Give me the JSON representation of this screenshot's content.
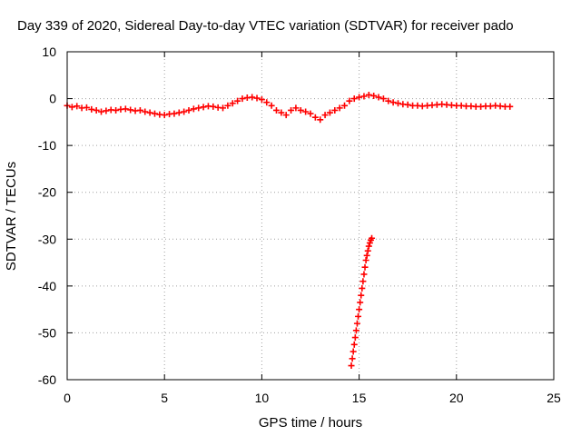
{
  "chart_data": {
    "type": "scatter",
    "title": "Day 339 of 2020, Sidereal Day-to-day VTEC variation (SDTVAR) for receiver pado",
    "xlabel": "GPS time / hours",
    "ylabel": "SDTVAR / TECUs",
    "xlim": [
      0,
      25
    ],
    "ylim": [
      -60,
      10
    ],
    "xticks": [
      "0",
      "5",
      "10",
      "15",
      "20",
      "25"
    ],
    "xtick_values": [
      0,
      5,
      10,
      15,
      20,
      25
    ],
    "yticks": [
      "10",
      "0",
      "-10",
      "-20",
      "-30",
      "-40",
      "-50",
      "-60"
    ],
    "ytick_values": [
      10,
      0,
      -10,
      -20,
      -30,
      -40,
      -50,
      -60
    ],
    "grid": true,
    "marker": "plus",
    "color": "#ff0000",
    "series": [
      {
        "x": [
          0.0,
          0.25,
          0.5,
          0.75,
          1.0,
          1.25,
          1.5,
          1.75,
          2.0,
          2.25,
          2.5,
          2.75,
          3.0,
          3.25,
          3.5,
          3.75,
          4.0,
          4.25,
          4.5,
          4.75,
          5.0,
          5.25,
          5.5,
          5.75,
          6.0,
          6.25,
          6.5,
          6.75
        ],
        "y": [
          -1.5,
          -1.8,
          -1.6,
          -2.0,
          -1.9,
          -2.3,
          -2.5,
          -2.8,
          -2.6,
          -2.4,
          -2.5,
          -2.3,
          -2.2,
          -2.4,
          -2.6,
          -2.5,
          -2.8,
          -3.0,
          -3.2,
          -3.4,
          -3.5,
          -3.3,
          -3.2,
          -3.0,
          -2.8,
          -2.5,
          -2.2,
          -2.0
        ]
      },
      {
        "x": [
          7.0,
          7.25,
          7.5,
          7.75,
          8.0,
          8.25,
          8.5,
          8.75,
          9.0,
          9.25,
          9.5,
          9.75,
          10.0,
          10.25,
          10.5,
          10.75,
          11.0,
          11.25,
          11.5,
          11.75,
          12.0,
          12.25,
          12.5,
          12.75,
          13.0,
          13.25,
          13.5,
          13.75,
          14.0,
          14.25,
          14.5,
          14.75,
          15.0,
          15.25,
          15.5,
          15.75,
          16.0,
          16.25,
          16.5,
          16.75,
          17.0,
          17.25,
          17.5,
          17.75,
          18.0,
          18.25,
          18.5,
          18.75,
          19.0,
          19.25,
          19.5,
          19.75,
          20.0,
          20.25,
          20.5,
          20.75,
          21.0,
          21.25,
          21.5,
          21.75,
          22.0,
          22.25,
          22.5,
          22.75
        ],
        "y": [
          -1.8,
          -1.6,
          -1.7,
          -1.9,
          -2.0,
          -1.5,
          -1.0,
          -0.5,
          0.0,
          0.2,
          0.3,
          0.1,
          -0.2,
          -0.8,
          -1.5,
          -2.5,
          -3.0,
          -3.5,
          -2.5,
          -2.0,
          -2.5,
          -2.8,
          -3.2,
          -4.0,
          -4.5,
          -3.5,
          -3.0,
          -2.5,
          -2.0,
          -1.5,
          -0.5,
          0.0,
          0.3,
          0.5,
          0.8,
          0.6,
          0.3,
          0.0,
          -0.5,
          -0.8,
          -1.0,
          -1.2,
          -1.3,
          -1.5,
          -1.5,
          -1.6,
          -1.5,
          -1.4,
          -1.3,
          -1.2,
          -1.3,
          -1.4,
          -1.5,
          -1.5,
          -1.6,
          -1.6,
          -1.7,
          -1.7,
          -1.6,
          -1.6,
          -1.5,
          -1.6,
          -1.7,
          -1.7
        ]
      },
      {
        "x": [
          14.6,
          14.65,
          14.7,
          14.75,
          14.8,
          14.85,
          14.9,
          14.95,
          15.0,
          15.05,
          15.1,
          15.15,
          15.2,
          15.25,
          15.3,
          15.35,
          15.4,
          15.45,
          15.5,
          15.55,
          15.6,
          15.65
        ],
        "y": [
          -57.0,
          -55.5,
          -54.0,
          -52.5,
          -51.0,
          -49.5,
          -48.0,
          -46.5,
          -45.0,
          -43.5,
          -42.0,
          -40.5,
          -39.0,
          -37.5,
          -36.0,
          -34.5,
          -33.5,
          -32.5,
          -31.5,
          -30.8,
          -30.2,
          -29.8
        ]
      }
    ]
  }
}
